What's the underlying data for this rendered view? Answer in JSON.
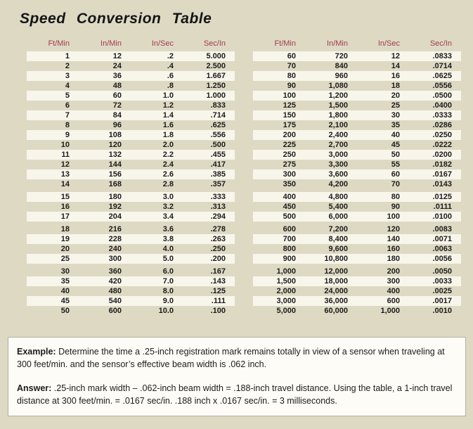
{
  "page": {
    "title": "Speed  Conversion  Table",
    "background_color": "#ded9c3",
    "stripe_color": "#f8f6eb",
    "header_text_color": "#a23a52"
  },
  "columns": [
    "Ft/Min",
    "In/Min",
    "In/Sec",
    "Sec/In"
  ],
  "tables": [
    {
      "name": "left",
      "groups": [
        14,
        3,
        4,
        5
      ],
      "rows": [
        [
          "1",
          "12",
          ".2",
          "5.000"
        ],
        [
          "2",
          "24",
          ".4",
          "2.500"
        ],
        [
          "3",
          "36",
          ".6",
          "1.667"
        ],
        [
          "4",
          "48",
          ".8",
          "1.250"
        ],
        [
          "5",
          "60",
          "1.0",
          "1.000"
        ],
        [
          "6",
          "72",
          "1.2",
          ".833"
        ],
        [
          "7",
          "84",
          "1.4",
          ".714"
        ],
        [
          "8",
          "96",
          "1.6",
          ".625"
        ],
        [
          "9",
          "108",
          "1.8",
          ".556"
        ],
        [
          "10",
          "120",
          "2.0",
          ".500"
        ],
        [
          "11",
          "132",
          "2.2",
          ".455"
        ],
        [
          "12",
          "144",
          "2.4",
          ".417"
        ],
        [
          "13",
          "156",
          "2.6",
          ".385"
        ],
        [
          "14",
          "168",
          "2.8",
          ".357"
        ],
        [
          "15",
          "180",
          "3.0",
          ".333"
        ],
        [
          "16",
          "192",
          "3.2",
          ".313"
        ],
        [
          "17",
          "204",
          "3.4",
          ".294"
        ],
        [
          "18",
          "216",
          "3.6",
          ".278"
        ],
        [
          "19",
          "228",
          "3.8",
          ".263"
        ],
        [
          "20",
          "240",
          "4.0",
          ".250"
        ],
        [
          "25",
          "300",
          "5.0",
          ".200"
        ],
        [
          "30",
          "360",
          "6.0",
          ".167"
        ],
        [
          "35",
          "420",
          "7.0",
          ".143"
        ],
        [
          "40",
          "480",
          "8.0",
          ".125"
        ],
        [
          "45",
          "540",
          "9.0",
          ".111"
        ],
        [
          "50",
          "600",
          "10.0",
          ".100"
        ]
      ]
    },
    {
      "name": "right",
      "groups": [
        14,
        3,
        4,
        5
      ],
      "rows": [
        [
          "60",
          "720",
          "12",
          ".0833"
        ],
        [
          "70",
          "840",
          "14",
          ".0714"
        ],
        [
          "80",
          "960",
          "16",
          ".0625"
        ],
        [
          "90",
          "1,080",
          "18",
          ".0556"
        ],
        [
          "100",
          "1,200",
          "20",
          ".0500"
        ],
        [
          "125",
          "1,500",
          "25",
          ".0400"
        ],
        [
          "150",
          "1,800",
          "30",
          ".0333"
        ],
        [
          "175",
          "2,100",
          "35",
          ".0286"
        ],
        [
          "200",
          "2,400",
          "40",
          ".0250"
        ],
        [
          "225",
          "2,700",
          "45",
          ".0222"
        ],
        [
          "250",
          "3,000",
          "50",
          ".0200"
        ],
        [
          "275",
          "3,300",
          "55",
          ".0182"
        ],
        [
          "300",
          "3,600",
          "60",
          ".0167"
        ],
        [
          "350",
          "4,200",
          "70",
          ".0143"
        ],
        [
          "400",
          "4,800",
          "80",
          ".0125"
        ],
        [
          "450",
          "5,400",
          "90",
          ".0111"
        ],
        [
          "500",
          "6,000",
          "100",
          ".0100"
        ],
        [
          "600",
          "7,200",
          "120",
          ".0083"
        ],
        [
          "700",
          "8,400",
          "140",
          ".0071"
        ],
        [
          "800",
          "9,600",
          "160",
          ".0063"
        ],
        [
          "900",
          "10,800",
          "180",
          ".0056"
        ],
        [
          "1,000",
          "12,000",
          "200",
          ".0050"
        ],
        [
          "1,500",
          "18,000",
          "300",
          ".0033"
        ],
        [
          "2,000",
          "24,000",
          "400",
          ".0025"
        ],
        [
          "3,000",
          "36,000",
          "600",
          ".0017"
        ],
        [
          "5,000",
          "60,000",
          "1,000",
          ".0010"
        ]
      ]
    }
  ],
  "notes": {
    "example_label": "Example:",
    "example_text": " Determine the time a .25-inch registration mark remains totally in view of a sensor when traveling at 300 feet/min. and the sensor’s effective beam width is .062 inch.",
    "answer_label": "Answer:",
    "answer_text": " .25-inch mark width – .062-inch beam width = .188-inch travel distance. Using the table, a 1-inch travel distance at 300 feet/min. = .0167 sec/in. .188 inch x .0167 sec/in. = 3 milliseconds."
  }
}
